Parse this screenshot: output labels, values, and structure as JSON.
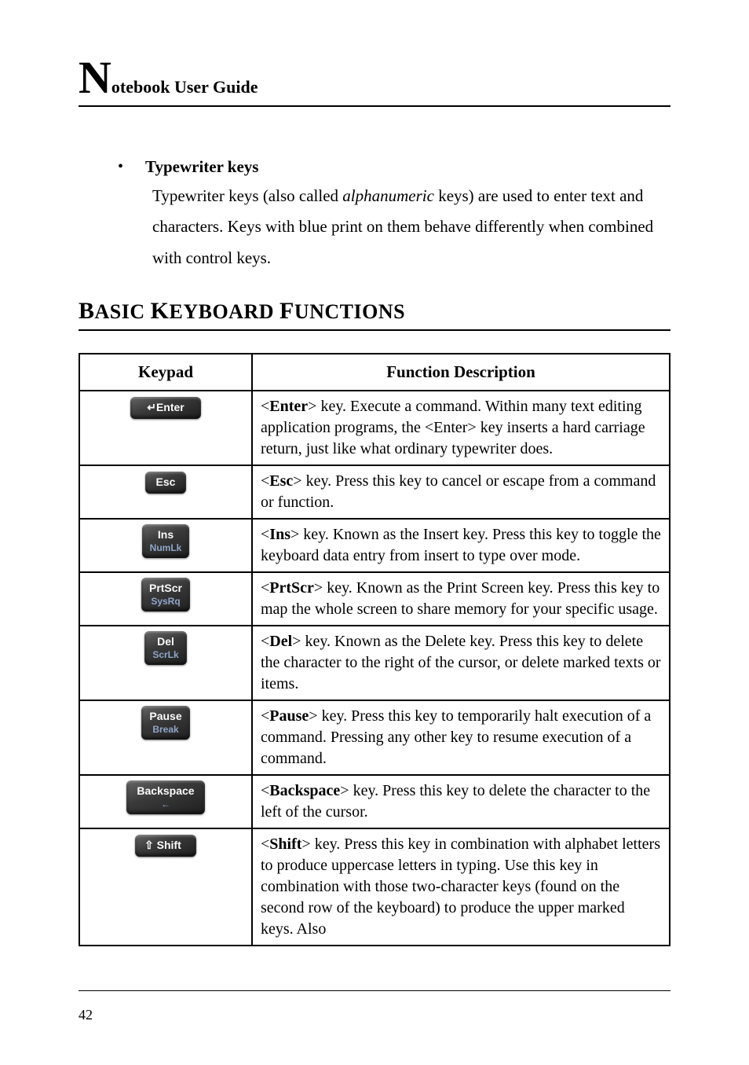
{
  "header": {
    "big_letter": "N",
    "rest": "otebook User Guide"
  },
  "bullet": {
    "title": "Typewriter keys",
    "body_before_italic": "Typewriter keys (also called ",
    "body_italic": "alphanumeric",
    "body_after_italic": " keys) are used to enter text and characters. Keys with blue print on them behave differently when combined with control keys."
  },
  "section_heading": {
    "b": "B",
    "asic": "ASIC ",
    "k": "K",
    "eyboard": "EYBOARD ",
    "f": "F",
    "unctions": "UNCTIONS"
  },
  "table": {
    "headers": {
      "keypad": "Keypad",
      "desc": "Function Description"
    },
    "rows": [
      {
        "keycap_main": "Enter",
        "keycap_sub": "",
        "keycap_class": "enter",
        "keycap_prefix_arrow": "↵",
        "keyname": "Enter",
        "desc_tail": " key. Execute a command. Within many text editing application programs, the <Enter> key inserts a hard carriage return, just like what ordinary typewriter does."
      },
      {
        "keycap_main": "Esc",
        "keycap_sub": "",
        "keycap_class": "esc",
        "keycap_prefix_arrow": "",
        "keyname": "Esc",
        "desc_tail": " key. Press this key to cancel or escape from a command or function."
      },
      {
        "keycap_main": "Ins",
        "keycap_sub": "NumLk",
        "keycap_class": "",
        "keycap_prefix_arrow": "",
        "keyname": "Ins",
        "desc_tail": " key. Known as the Insert key. Press this key to toggle the keyboard data entry from insert to type over mode."
      },
      {
        "keycap_main": "PrtScr",
        "keycap_sub": "SysRq",
        "keycap_class": "",
        "keycap_prefix_arrow": "",
        "keyname": "PrtScr",
        "desc_tail": " key. Known as the Print Screen key. Press this key to map the whole screen to share memory for your specific usage."
      },
      {
        "keycap_main": "Del",
        "keycap_sub": "ScrLk",
        "keycap_class": "",
        "keycap_prefix_arrow": "",
        "keyname": "Del",
        "desc_tail": " key. Known as the Delete key. Press this key to delete the character to the right of the cursor, or delete marked texts or items."
      },
      {
        "keycap_main": "Pause",
        "keycap_sub": "Break",
        "keycap_class": "",
        "keycap_prefix_arrow": "",
        "keyname": "Pause",
        "desc_tail": " key. Press this key to temporarily halt execution of a command. Pressing any other key to resume execution of a command."
      },
      {
        "keycap_main": "Backspace",
        "keycap_sub": "←",
        "keycap_class": "bksp",
        "keycap_prefix_arrow": "",
        "keyname": "Backspace",
        "desc_tail": " key. Press this key to delete the character to the left of the cursor."
      },
      {
        "keycap_main": "Shift",
        "keycap_sub": "",
        "keycap_class": "shift",
        "keycap_prefix_arrow": "⇧ ",
        "keyname": "Shift",
        "desc_tail": " key. Press this key in combination with alphabet letters to produce uppercase letters in typing. Use this key in combination with those two-character keys (found on the second row of the keyboard) to produce the upper marked keys. Also"
      }
    ]
  },
  "page_number": "42",
  "colors": {
    "text": "#000000",
    "background": "#ffffff",
    "keycap_text": "#fafafa",
    "keycap_sub": "#8fa6c9"
  }
}
